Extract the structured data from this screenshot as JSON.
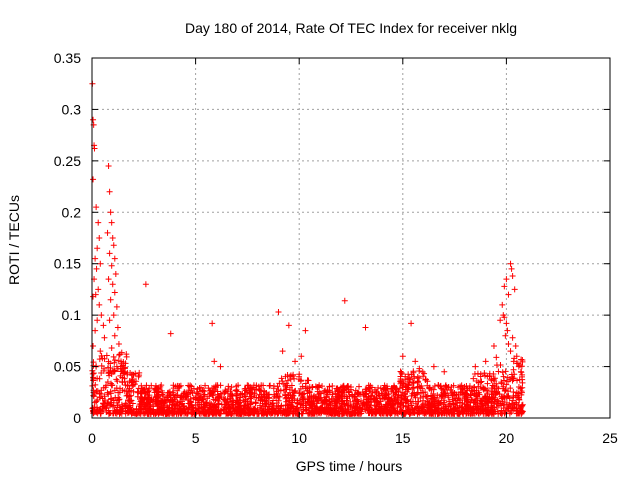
{
  "chart_data": {
    "type": "scatter",
    "title": "Day 180 of 2014, Rate Of TEC Index for receiver nklg",
    "xlabel": "GPS time / hours",
    "ylabel": "ROTI / TECUs",
    "xlim": [
      0,
      25
    ],
    "ylim": [
      0,
      0.35
    ],
    "xticks": [
      0,
      5,
      10,
      15,
      20,
      25
    ],
    "xtick_labels": [
      "0",
      "5",
      "10",
      "15",
      "20",
      "25"
    ],
    "yticks": [
      0,
      0.05,
      0.1,
      0.15,
      0.2,
      0.25,
      0.3,
      0.35
    ],
    "ytick_labels": [
      "0",
      "0.05",
      "0.1",
      "0.15",
      "0.2",
      "0.25",
      "0.3",
      "0.35"
    ],
    "grid": true,
    "marker": "+",
    "color": "#ff0000",
    "data_x_range": [
      0,
      20.8
    ],
    "series": [
      {
        "name": "ROTI",
        "points": [
          [
            0.02,
            0.325
          ],
          [
            0.05,
            0.29
          ],
          [
            0.08,
            0.285
          ],
          [
            0.1,
            0.265
          ],
          [
            0.12,
            0.262
          ],
          [
            0.05,
            0.232
          ],
          [
            0.2,
            0.205
          ],
          [
            0.3,
            0.19
          ],
          [
            0.35,
            0.175
          ],
          [
            0.25,
            0.165
          ],
          [
            0.15,
            0.155
          ],
          [
            0.4,
            0.15
          ],
          [
            0.22,
            0.145
          ],
          [
            0.1,
            0.135
          ],
          [
            0.3,
            0.125
          ],
          [
            0.18,
            0.12
          ],
          [
            0.05,
            0.118
          ],
          [
            0.35,
            0.11
          ],
          [
            0.45,
            0.1
          ],
          [
            0.25,
            0.095
          ],
          [
            0.55,
            0.09
          ],
          [
            0.15,
            0.085
          ],
          [
            0.6,
            0.078
          ],
          [
            0.05,
            0.07
          ],
          [
            0.4,
            0.065
          ],
          [
            0.5,
            0.058
          ],
          [
            0.2,
            0.05
          ],
          [
            0.8,
            0.245
          ],
          [
            0.85,
            0.22
          ],
          [
            0.9,
            0.2
          ],
          [
            0.95,
            0.19
          ],
          [
            0.75,
            0.18
          ],
          [
            1.0,
            0.175
          ],
          [
            1.05,
            0.168
          ],
          [
            0.85,
            0.16
          ],
          [
            1.1,
            0.155
          ],
          [
            0.95,
            0.148
          ],
          [
            1.15,
            0.14
          ],
          [
            0.8,
            0.135
          ],
          [
            1.0,
            0.13
          ],
          [
            1.1,
            0.122
          ],
          [
            0.9,
            0.115
          ],
          [
            1.2,
            0.108
          ],
          [
            1.05,
            0.1
          ],
          [
            0.85,
            0.095
          ],
          [
            1.25,
            0.088
          ],
          [
            1.1,
            0.08
          ],
          [
            1.3,
            0.072
          ],
          [
            0.95,
            0.068
          ],
          [
            1.35,
            0.062
          ],
          [
            1.4,
            0.055
          ],
          [
            1.2,
            0.05
          ],
          [
            1.5,
            0.048
          ],
          [
            1.6,
            0.045
          ],
          [
            1.7,
            0.042
          ],
          [
            2.6,
            0.13
          ],
          [
            3.8,
            0.082
          ],
          [
            5.8,
            0.092
          ],
          [
            6.2,
            0.05
          ],
          [
            5.9,
            0.055
          ],
          [
            9.0,
            0.103
          ],
          [
            9.5,
            0.09
          ],
          [
            10.3,
            0.085
          ],
          [
            9.2,
            0.065
          ],
          [
            10.1,
            0.06
          ],
          [
            9.8,
            0.055
          ],
          [
            12.2,
            0.114
          ],
          [
            13.2,
            0.088
          ],
          [
            15.4,
            0.092
          ],
          [
            15.0,
            0.06
          ],
          [
            15.6,
            0.055
          ],
          [
            15.8,
            0.048
          ],
          [
            16.5,
            0.05
          ],
          [
            17.0,
            0.045
          ],
          [
            18.5,
            0.05
          ],
          [
            19.0,
            0.055
          ],
          [
            19.4,
            0.07
          ],
          [
            20.2,
            0.15
          ],
          [
            20.25,
            0.145
          ],
          [
            20.3,
            0.138
          ],
          [
            20.0,
            0.135
          ],
          [
            19.9,
            0.128
          ],
          [
            20.4,
            0.125
          ],
          [
            20.1,
            0.12
          ],
          [
            19.8,
            0.11
          ],
          [
            19.85,
            0.1
          ],
          [
            19.9,
            0.098
          ],
          [
            19.7,
            0.095
          ],
          [
            20.0,
            0.092
          ],
          [
            20.05,
            0.085
          ],
          [
            19.95,
            0.08
          ],
          [
            20.3,
            0.078
          ],
          [
            20.1,
            0.072
          ],
          [
            20.45,
            0.07
          ],
          [
            20.2,
            0.065
          ],
          [
            20.5,
            0.06
          ],
          [
            20.35,
            0.055
          ],
          [
            20.6,
            0.05
          ],
          [
            20.7,
            0.045
          ],
          [
            20.75,
            0.04
          ]
        ]
      }
    ]
  }
}
